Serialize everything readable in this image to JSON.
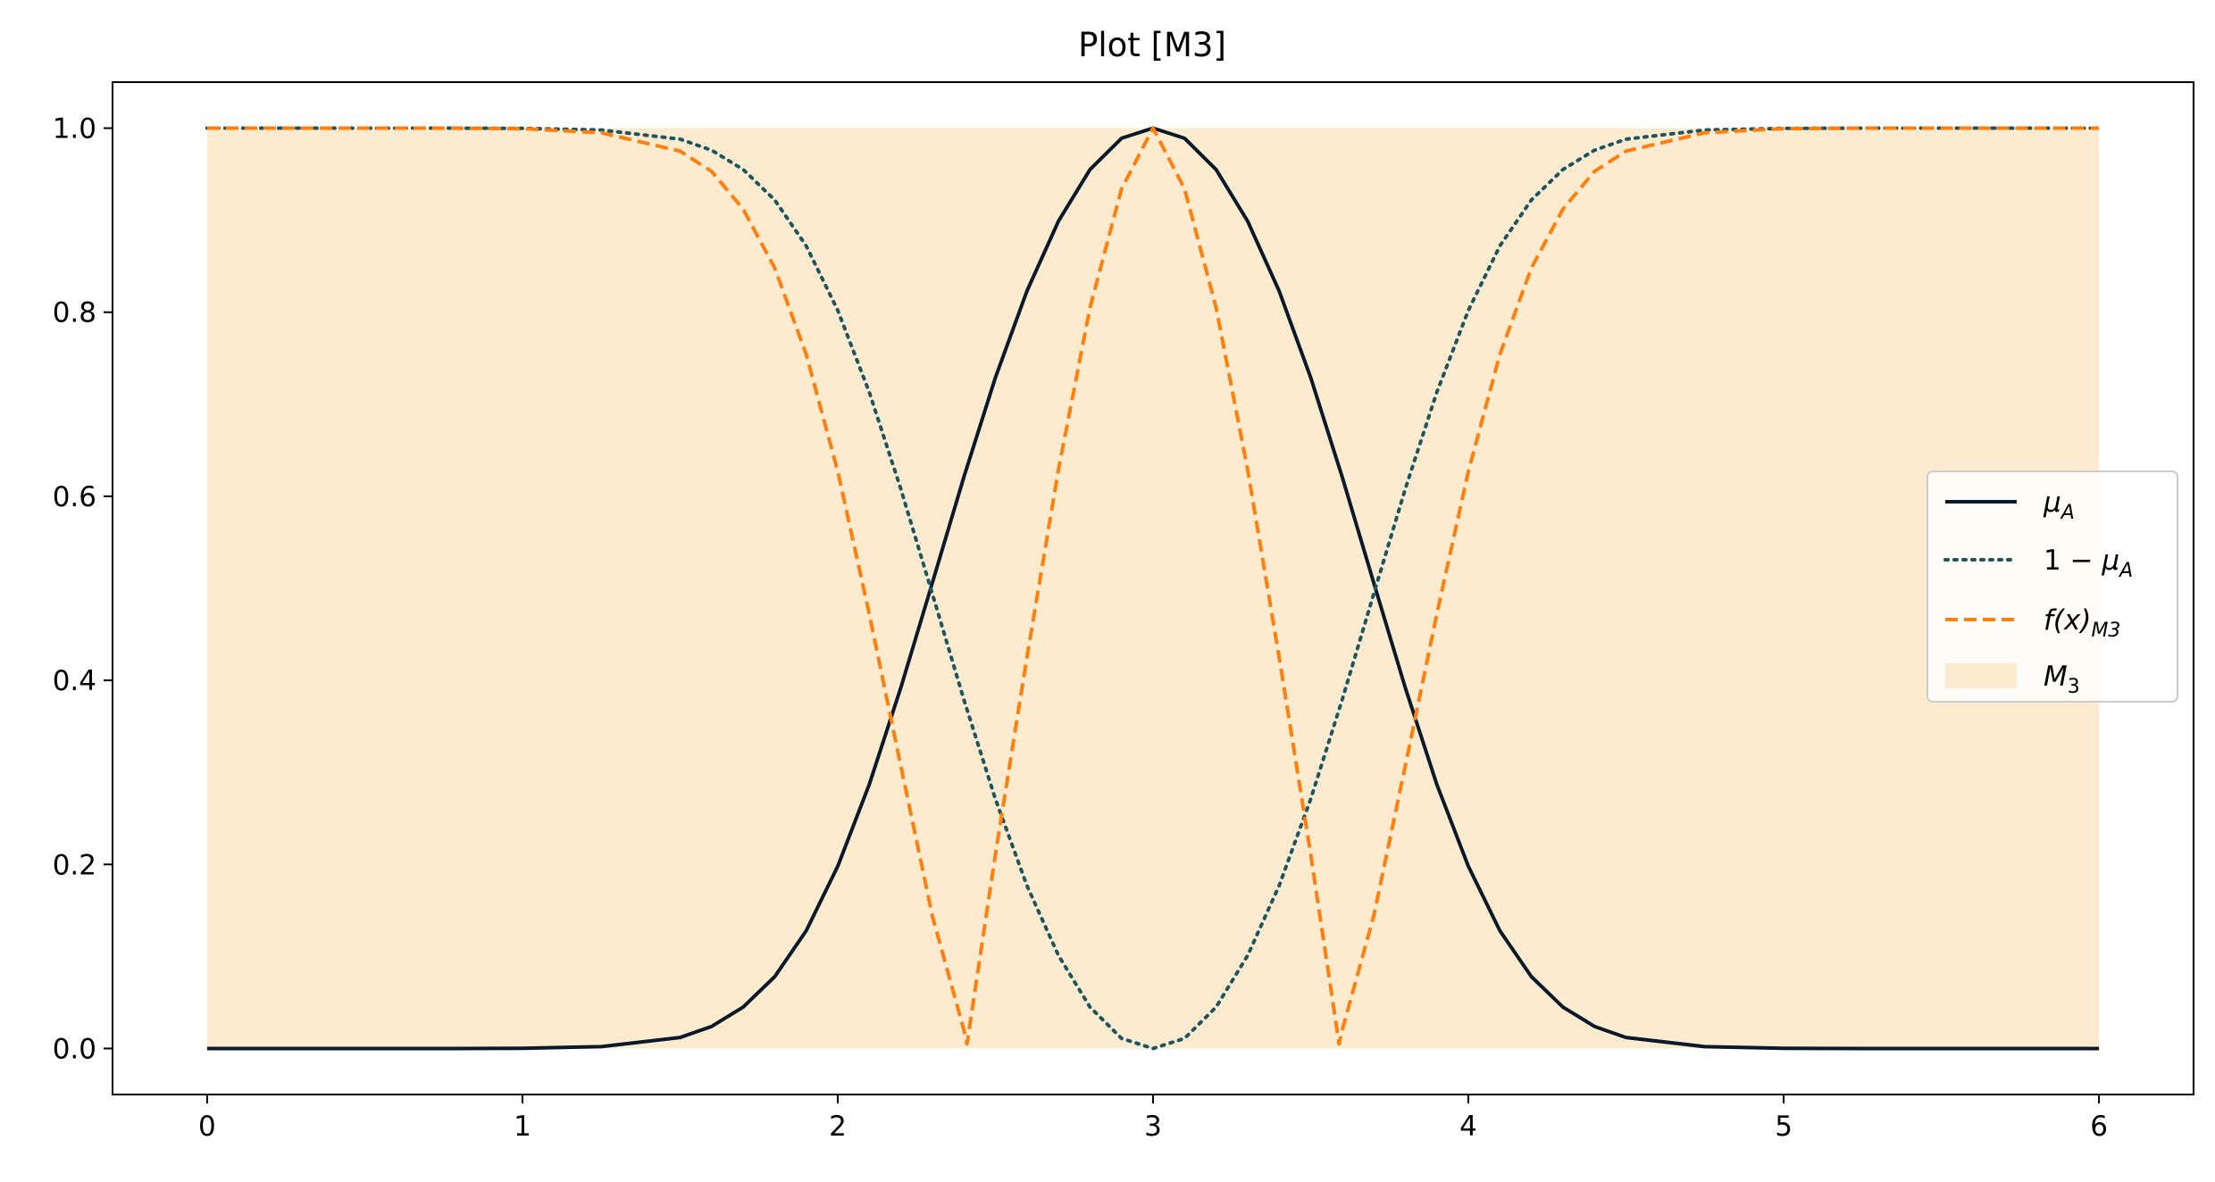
{
  "chart_data": {
    "type": "line",
    "title": "Plot [M3]",
    "xlabel": "",
    "ylabel": "",
    "xlim": [
      -0.3,
      6.3
    ],
    "ylim": [
      -0.05,
      1.05
    ],
    "x_ticks": [
      0,
      1,
      2,
      3,
      4,
      5,
      6
    ],
    "x_tick_labels": [
      "0",
      "1",
      "2",
      "3",
      "4",
      "5",
      "6"
    ],
    "y_ticks": [
      0.0,
      0.2,
      0.4,
      0.6,
      0.8,
      1.0
    ],
    "y_tick_labels": [
      "0.0",
      "0.2",
      "0.4",
      "0.6",
      "0.8",
      "1.0"
    ],
    "grid": false,
    "legend_position": "center-right",
    "series": [
      {
        "name": "μ_A",
        "style": "solid",
        "color": "#0b1a2a",
        "x": [
          0,
          0.25,
          0.5,
          0.75,
          1,
          1.25,
          1.5,
          1.6,
          1.7,
          1.8,
          1.9,
          2,
          2.1,
          2.2,
          2.3,
          2.4,
          2.5,
          2.6,
          2.7,
          2.8,
          2.9,
          3,
          3.1,
          3.2,
          3.3,
          3.4,
          3.5,
          3.6,
          3.7,
          3.8,
          3.9,
          4,
          4.1,
          4.2,
          4.3,
          4.4,
          4.5,
          4.75,
          5,
          5.25,
          5.5,
          5.75,
          6
        ],
        "y": [
          0,
          0,
          0,
          0,
          0.0002,
          0.002,
          0.012,
          0.024,
          0.045,
          0.078,
          0.128,
          0.198,
          0.287,
          0.392,
          0.506,
          0.621,
          0.729,
          0.823,
          0.899,
          0.955,
          0.989,
          1.0,
          0.989,
          0.955,
          0.899,
          0.823,
          0.729,
          0.621,
          0.506,
          0.392,
          0.287,
          0.198,
          0.128,
          0.078,
          0.045,
          0.024,
          0.012,
          0.002,
          0.0002,
          0,
          0,
          0,
          0
        ]
      },
      {
        "name": "1 − μ_A",
        "style": "dotted",
        "color": "#1b5560",
        "x": [
          0,
          0.25,
          0.5,
          0.75,
          1,
          1.25,
          1.5,
          1.6,
          1.7,
          1.8,
          1.9,
          2,
          2.1,
          2.2,
          2.3,
          2.4,
          2.5,
          2.6,
          2.7,
          2.8,
          2.9,
          3,
          3.1,
          3.2,
          3.3,
          3.4,
          3.5,
          3.6,
          3.7,
          3.8,
          3.9,
          4,
          4.1,
          4.2,
          4.3,
          4.4,
          4.5,
          4.75,
          5,
          5.25,
          5.5,
          5.75,
          6
        ],
        "y": [
          1,
          1,
          1,
          1,
          0.9998,
          0.998,
          0.988,
          0.976,
          0.955,
          0.922,
          0.872,
          0.802,
          0.713,
          0.608,
          0.494,
          0.379,
          0.271,
          0.177,
          0.101,
          0.045,
          0.011,
          0.0,
          0.011,
          0.045,
          0.101,
          0.177,
          0.271,
          0.379,
          0.494,
          0.608,
          0.713,
          0.802,
          0.872,
          0.922,
          0.955,
          0.976,
          0.988,
          0.998,
          0.9998,
          1,
          1,
          1,
          1
        ]
      },
      {
        "name": "f(x)_M3",
        "style": "dashed",
        "color": "#ff7f0e",
        "x": [
          0,
          0.25,
          0.5,
          0.75,
          1,
          1.25,
          1.5,
          1.6,
          1.7,
          1.8,
          1.9,
          2,
          2.1,
          2.2,
          2.3,
          2.4,
          2.41,
          2.5,
          2.6,
          2.7,
          2.8,
          2.9,
          3,
          3.1,
          3.2,
          3.3,
          3.4,
          3.5,
          3.59,
          3.6,
          3.7,
          3.8,
          3.9,
          4,
          4.1,
          4.2,
          4.3,
          4.4,
          4.5,
          4.75,
          5,
          5.25,
          5.5,
          5.75,
          6
        ],
        "y": [
          1,
          1,
          1,
          1,
          0.9995,
          0.995,
          0.975,
          0.953,
          0.912,
          0.848,
          0.754,
          0.627,
          0.472,
          0.307,
          0.144,
          0.02,
          0.005,
          0.211,
          0.425,
          0.629,
          0.805,
          0.934,
          1.0,
          0.934,
          0.805,
          0.629,
          0.425,
          0.211,
          0.005,
          0.02,
          0.144,
          0.307,
          0.472,
          0.627,
          0.754,
          0.848,
          0.912,
          0.953,
          0.975,
          0.995,
          0.9995,
          1,
          1,
          1,
          1
        ]
      }
    ],
    "fill": {
      "name": "M_3",
      "color": "#fdebd0",
      "x_range": [
        0,
        6
      ],
      "y_range": [
        0,
        1
      ]
    }
  },
  "legend": {
    "entries": [
      {
        "main": "μ",
        "sub": "A",
        "prefix": ""
      },
      {
        "main": "μ",
        "sub": "A",
        "prefix": "1 − "
      },
      {
        "main": "f(x)",
        "sub": "M3",
        "prefix": ""
      },
      {
        "main": "M",
        "sub": "3",
        "prefix": ""
      }
    ]
  }
}
